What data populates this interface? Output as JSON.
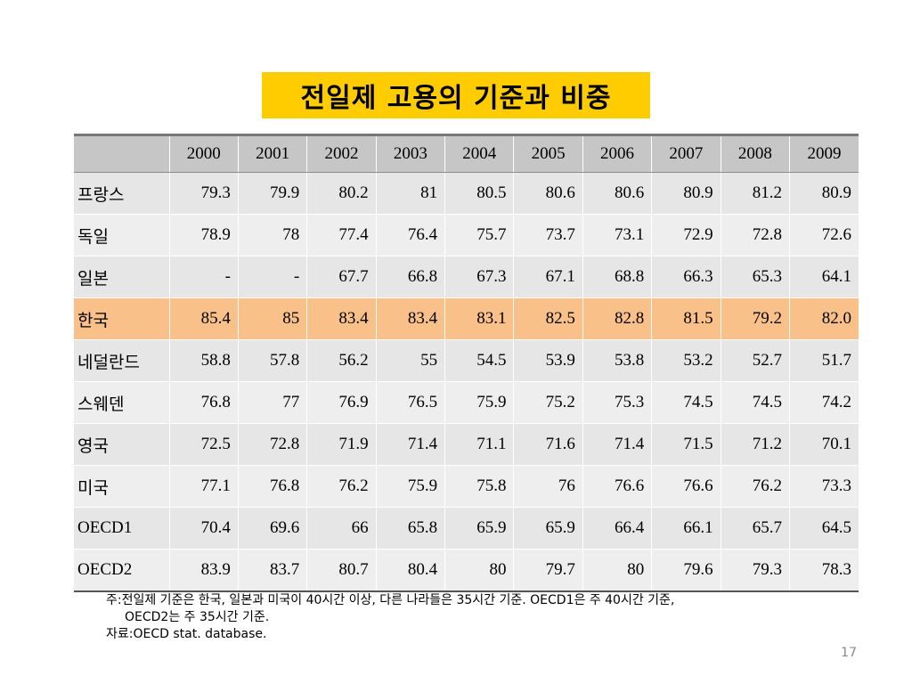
{
  "title": "전일제 고용의 기준과 비중",
  "table": {
    "header": [
      "",
      "2000",
      "2001",
      "2002",
      "2003",
      "2004",
      "2005",
      "2006",
      "2007",
      "2008",
      "2009"
    ],
    "rows": [
      {
        "label": "프랑스",
        "values": [
          "79.3",
          "79.9",
          "80.2",
          "81",
          "80.5",
          "80.6",
          "80.6",
          "80.9",
          "81.2",
          "80.9"
        ]
      },
      {
        "label": "독일",
        "values": [
          "78.9",
          "78",
          "77.4",
          "76.4",
          "75.7",
          "73.7",
          "73.1",
          "72.9",
          "72.8",
          "72.6"
        ]
      },
      {
        "label": "일본",
        "values": [
          "-",
          "-",
          "67.7",
          "66.8",
          "67.3",
          "67.1",
          "68.8",
          "66.3",
          "65.3",
          "64.1"
        ]
      },
      {
        "label": "한국",
        "values": [
          "85.4",
          "85",
          "83.4",
          "83.4",
          "83.1",
          "82.5",
          "82.8",
          "81.5",
          "79.2",
          "82.0"
        ]
      },
      {
        "label": "네덜란드",
        "values": [
          "58.8",
          "57.8",
          "56.2",
          "55",
          "54.5",
          "53.9",
          "53.8",
          "53.2",
          "52.7",
          "51.7"
        ]
      },
      {
        "label": "스웨덴",
        "values": [
          "76.8",
          "77",
          "76.9",
          "76.5",
          "75.9",
          "75.2",
          "75.3",
          "74.5",
          "74.5",
          "74.2"
        ]
      },
      {
        "label": "영국",
        "values": [
          "72.5",
          "72.8",
          "71.9",
          "71.4",
          "71.1",
          "71.6",
          "71.4",
          "71.5",
          "71.2",
          "70.1"
        ]
      },
      {
        "label": "미국",
        "values": [
          "77.1",
          "76.8",
          "76.2",
          "75.9",
          "75.8",
          "76",
          "76.6",
          "76.6",
          "76.2",
          "73.3"
        ]
      },
      {
        "label": "OECD1",
        "values": [
          "70.4",
          "69.6",
          "66",
          "65.8",
          "65.9",
          "65.9",
          "66.4",
          "66.1",
          "65.7",
          "64.5"
        ]
      },
      {
        "label": "OECD2",
        "values": [
          "83.9",
          "83.7",
          "80.7",
          "80.4",
          "80",
          "79.7",
          "80",
          "79.6",
          "79.3",
          "78.3"
        ]
      }
    ]
  },
  "notes": {
    "line1": "주:전일제 기준은 한국, 일본과 미국이 40시간 이상, 다른 나라들은 35시간 기준. OECD1은 주 40시간 기준,",
    "line2": "OECD2는 주 35시간 기준.",
    "source": "자료:OECD stat. database."
  },
  "page_number": "17",
  "colors": {
    "title_background": "#ffcc00",
    "header_background": "#c6c6c6",
    "highlight_row": "#f9c08a",
    "cell_background": "#e6e6e6"
  }
}
